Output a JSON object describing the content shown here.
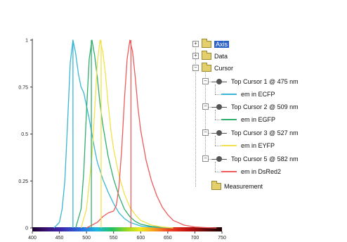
{
  "chart_data": {
    "type": "line",
    "xlabel": "",
    "ylabel": "",
    "xlim": [
      400,
      750
    ],
    "ylim": [
      0,
      1
    ],
    "x_ticks": [
      "400",
      "450",
      "500",
      "550",
      "600",
      "650",
      "700",
      "750"
    ],
    "y_ticks": [
      "0",
      "0.25",
      "0.5",
      "0.75",
      "1"
    ],
    "grid": false,
    "series": [
      {
        "name": "em in ECFP",
        "color": "#3ab6d4",
        "x": [
          440,
          450,
          455,
          460,
          465,
          470,
          475,
          480,
          485,
          490,
          495,
          500,
          505,
          510,
          515,
          520,
          530,
          540,
          550,
          560,
          570,
          580,
          600,
          620,
          640,
          660
        ],
        "y": [
          0.0,
          0.03,
          0.1,
          0.25,
          0.55,
          0.88,
          1.0,
          0.93,
          0.82,
          0.75,
          0.72,
          0.65,
          0.58,
          0.5,
          0.42,
          0.35,
          0.26,
          0.19,
          0.13,
          0.08,
          0.05,
          0.03,
          0.01,
          0.005,
          0.002,
          0.0
        ]
      },
      {
        "name": "em in EGFP",
        "color": "#2fae6c",
        "x": [
          480,
          490,
          495,
          500,
          505,
          510,
          515,
          520,
          525,
          530,
          540,
          550,
          560,
          570,
          580,
          590,
          600,
          620,
          640,
          660
        ],
        "y": [
          0.0,
          0.1,
          0.3,
          0.62,
          0.9,
          1.0,
          0.92,
          0.8,
          0.66,
          0.55,
          0.38,
          0.26,
          0.17,
          0.1,
          0.06,
          0.035,
          0.02,
          0.008,
          0.003,
          0.0
        ]
      },
      {
        "name": "em in EYFP",
        "color": "#f2e14a",
        "x": [
          490,
          500,
          510,
          515,
          520,
          525,
          530,
          535,
          540,
          545,
          550,
          560,
          570,
          580,
          590,
          600,
          620,
          640,
          660
        ],
        "y": [
          0.0,
          0.1,
          0.38,
          0.62,
          0.88,
          1.0,
          0.94,
          0.82,
          0.66,
          0.52,
          0.42,
          0.28,
          0.18,
          0.11,
          0.07,
          0.04,
          0.015,
          0.005,
          0.0
        ]
      },
      {
        "name": "em in DsRed2",
        "color": "#ef5a5a",
        "x": [
          500,
          520,
          530,
          540,
          550,
          555,
          560,
          565,
          570,
          575,
          580,
          585,
          590,
          595,
          600,
          610,
          620,
          630,
          640,
          650,
          660,
          680,
          700,
          720,
          740
        ],
        "y": [
          0.0,
          0.03,
          0.06,
          0.08,
          0.09,
          0.12,
          0.22,
          0.42,
          0.68,
          0.9,
          1.0,
          0.94,
          0.8,
          0.64,
          0.52,
          0.36,
          0.25,
          0.17,
          0.11,
          0.07,
          0.04,
          0.015,
          0.005,
          0.002,
          0.0
        ]
      }
    ],
    "cursors": [
      {
        "x": 475,
        "color": "#3ab6d4"
      },
      {
        "x": 509,
        "color": "#2fae6c"
      },
      {
        "x": 527,
        "color": "#f2e14a"
      },
      {
        "x": 582,
        "color": "#ef5a5a"
      }
    ]
  },
  "tree": {
    "items": [
      {
        "label": "Axis",
        "expander": "+",
        "icon": "folder-icon",
        "selected": true
      },
      {
        "label": "Data",
        "expander": "+",
        "icon": "folder-icon",
        "selected": false
      },
      {
        "label": "Cursor",
        "expander": "−",
        "icon": "folder-icon",
        "selected": false
      },
      {
        "label": "Top Cursor 1 @ 475 nm",
        "expander": "−",
        "icon": "cursor-icon",
        "selected": false
      },
      {
        "label": "em in ECFP",
        "icon": "swatch-icon",
        "color": "#3ab6d4",
        "selected": false
      },
      {
        "label": "Top Cursor 2 @ 509 nm",
        "expander": "−",
        "icon": "cursor-icon",
        "selected": false
      },
      {
        "label": "em in EGFP",
        "icon": "swatch-icon",
        "color": "#2fae6c",
        "selected": false
      },
      {
        "label": "Top Cursor 3 @ 527 nm",
        "expander": "−",
        "icon": "cursor-icon",
        "selected": false
      },
      {
        "label": "em in EYFP",
        "icon": "swatch-icon",
        "color": "#f2e14a",
        "selected": false
      },
      {
        "label": "Top Cursor 5 @ 582 nm",
        "expander": "−",
        "icon": "cursor-icon",
        "selected": false
      },
      {
        "label": "em in DsRed2",
        "icon": "swatch-icon",
        "color": "#ef5a5a",
        "selected": false
      },
      {
        "label": "Measurement",
        "icon": "folder-icon",
        "selected": false
      }
    ]
  }
}
